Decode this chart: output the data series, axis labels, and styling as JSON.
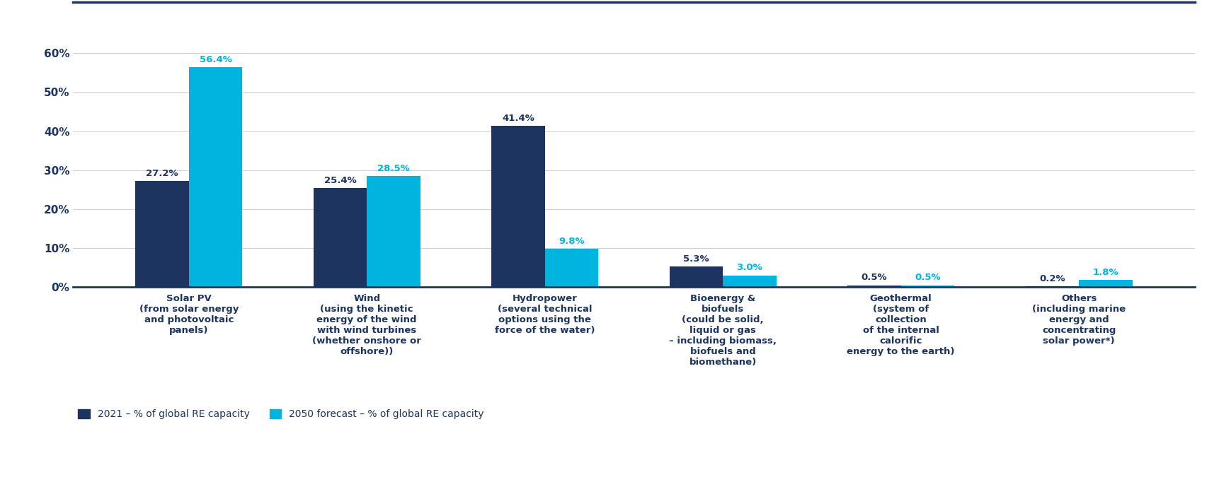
{
  "categories": [
    "Solar PV\n(from solar energy\nand photovoltaic\npanels)",
    "Wind\n(using the kinetic\nenergy of the wind\nwith wind turbines\n(whether onshore or\noffshore))",
    "Hydropower\n(several technical\noptions using the\nforce of the water)",
    "Bioenergy &\nbiofuels\n(could be solid,\nliquid or gas\n– including biomass,\nbiofuels and\nbiomethane)",
    "Geothermal\n(system of\ncollection\nof the internal\ncalorific\nenergy to the earth)",
    "Others\n(including marine\nenergy and\nconcentrating\nsolar power*)"
  ],
  "values_2021": [
    27.2,
    25.4,
    41.4,
    5.3,
    0.5,
    0.2
  ],
  "values_2050": [
    56.4,
    28.5,
    9.8,
    3.0,
    0.5,
    1.8
  ],
  "color_2021": "#1d3461",
  "color_2050": "#00b4e0",
  "ylim": [
    0,
    65
  ],
  "yticks": [
    0,
    10,
    20,
    30,
    40,
    50,
    60
  ],
  "bar_width": 0.3,
  "legend_2021": "2021 – % of global RE capacity",
  "legend_2050": "2050 forecast – % of global RE capacity",
  "background_color": "#ffffff",
  "text_color": "#1d3461",
  "axis_label_fontsize": 11,
  "category_fontsize": 9.5,
  "legend_fontsize": 10,
  "value_fontsize": 9.5,
  "top_line_color": "#1d3461",
  "separator_line_color": "#1d3461",
  "grid_color": "#d0d0d0"
}
